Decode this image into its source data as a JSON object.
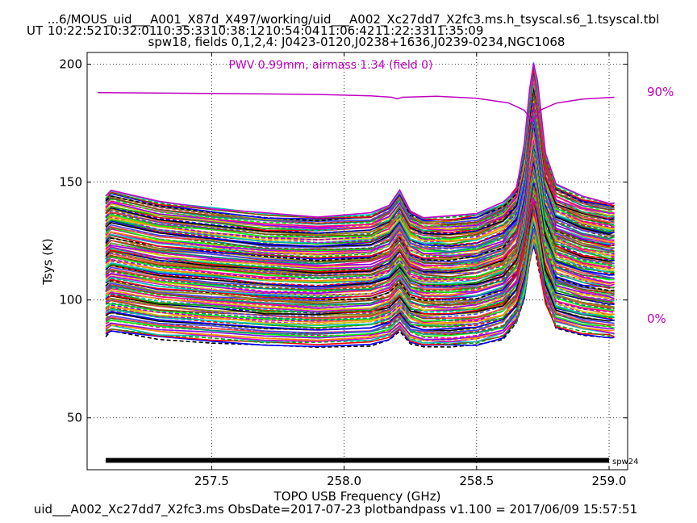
{
  "header": {
    "title": "...6/MOUS_uid___A001_X87d_X497/working/uid___A002_Xc27dd7_X2fc3.ms.h_tsyscal.s6_1.tsyscal.tbl",
    "ut_label": "UT",
    "ut_times": [
      "10:22:52",
      "10:32:01",
      "10:35:33",
      "10:38:12",
      "10:54:04",
      "11:06:42",
      "11:22:33",
      "11:35:09"
    ],
    "subtitle": "spw18,  fields 0,1,2,4: J0423-0120,J0238+1636,J0239-0234,NGC1068"
  },
  "footer": {
    "text": "uid___A002_Xc27dd7_X2fc3.ms  ObsDate=2017-07-23   plotbandpass v1.100 = 2017/06/09 15:57:51"
  },
  "chart_data": {
    "type": "line",
    "xlabel": "TOPO USB Frequency (GHz)",
    "ylabel": "Tsys (K)",
    "xlim": [
      257.03,
      259.07
    ],
    "ylim": [
      28,
      205
    ],
    "xticks": [
      257.5,
      258.0,
      258.5,
      259.0
    ],
    "xtick_labels": [
      "257.5",
      "258.0",
      "258.5",
      "259.0"
    ],
    "yticks": [
      50,
      100,
      150,
      200
    ],
    "ytick_labels": [
      "50",
      "100",
      "150",
      "200"
    ],
    "grid": true,
    "pwv_annotation": "PWV 0.99mm, airmass 1.34 (field 0)",
    "atm_scale_labels": [
      "90%",
      "0%"
    ],
    "atm_color": "#bf00bf",
    "atm_transmission": {
      "x": [
        257.07,
        257.5,
        257.9,
        258.1,
        258.18,
        258.2,
        258.22,
        258.35,
        258.5,
        258.62,
        258.68,
        258.71,
        258.74,
        258.8,
        258.9,
        259.02
      ],
      "y": [
        188,
        187.6,
        187.2,
        186.6,
        186.0,
        185.3,
        186.0,
        186.4,
        185.6,
        183.6,
        180.5,
        176.0,
        180.5,
        183.5,
        185.2,
        186.0
      ]
    },
    "spw_bar": {
      "label": "spw24",
      "x": [
        257.1,
        259.0
      ],
      "y": 32
    },
    "series_base_x": [
      257.1,
      257.12,
      257.3,
      257.5,
      257.7,
      257.9,
      258.1,
      258.17,
      258.21,
      258.25,
      258.3,
      258.4,
      258.5,
      258.6,
      258.65,
      258.68,
      258.7,
      258.715,
      258.73,
      258.76,
      258.8,
      258.9,
      259.0,
      259.02
    ],
    "series_base_y": [
      118,
      120,
      116,
      114,
      112,
      111,
      112,
      115,
      120,
      113,
      111,
      111,
      112,
      116,
      124,
      138,
      158,
      168,
      160,
      135,
      122,
      118,
      116,
      116
    ],
    "series_spread": {
      "top_at_100": 122,
      "bottom_at_100": 72,
      "count": 150,
      "colors": [
        "#000000",
        "#0000ff",
        "#ff0000",
        "#00aa00",
        "#00c0c0",
        "#cc00cc",
        "#cccc00",
        "#ff8800",
        "#8800ff",
        "#ff0088",
        "#00ff00",
        "#008888",
        "#884400",
        "#ff4444",
        "#4444ff",
        "#888800"
      ]
    }
  }
}
